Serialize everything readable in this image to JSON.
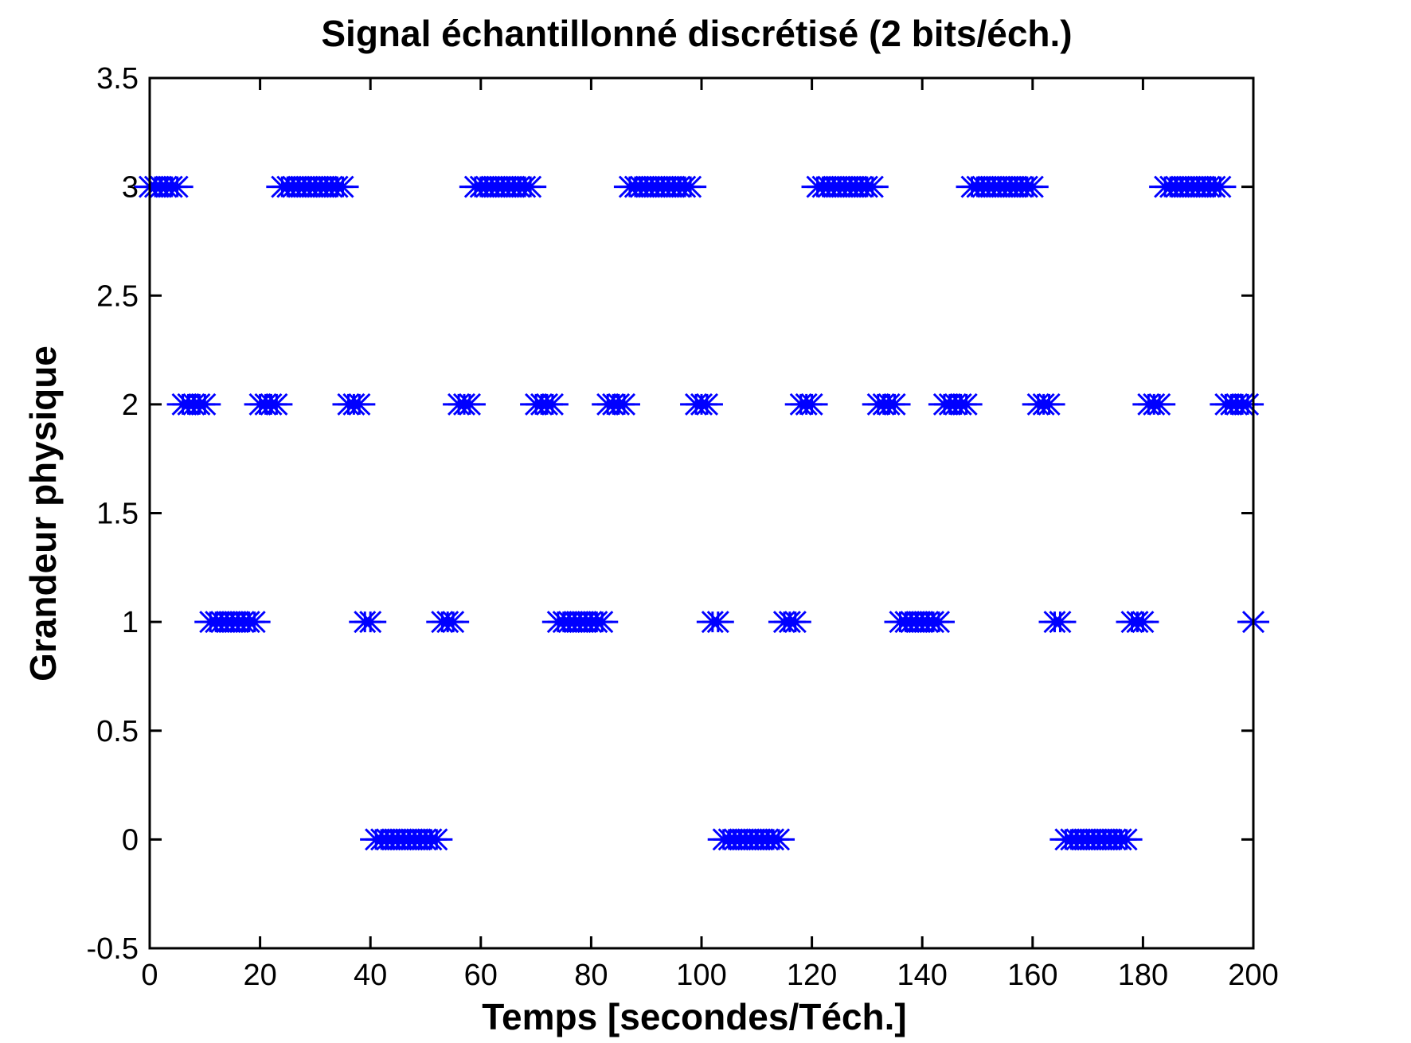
{
  "chart_data": {
    "type": "scatter",
    "title": "Signal échantillonné discrétisé (2 bits/éch.)",
    "xlabel": "Temps [secondes/Téch.]",
    "ylabel": "Grandeur physique",
    "xlim": [
      0,
      200
    ],
    "ylim": [
      -0.5,
      3.5
    ],
    "xticks": [
      "0",
      "20",
      "40",
      "60",
      "80",
      "100",
      "120",
      "140",
      "160",
      "180",
      "200"
    ],
    "yticks": [
      "-0.5",
      "0",
      "0.5",
      "1",
      "1.5",
      "2",
      "2.5",
      "3",
      "3.5"
    ],
    "grid": false,
    "marker": "*",
    "color": "#0000ff",
    "series": [
      {
        "x": [
          0,
          1,
          2,
          3,
          4,
          5,
          6,
          7,
          8,
          9,
          10,
          11,
          12,
          13,
          14,
          15,
          16,
          17,
          18,
          19,
          20,
          21,
          22,
          23,
          24,
          25,
          26,
          27,
          28,
          29,
          30,
          31,
          32,
          33,
          34,
          35,
          36,
          37,
          38,
          39,
          40,
          41,
          42,
          43,
          44,
          45,
          46,
          47,
          48,
          49,
          50,
          51,
          52,
          53,
          54,
          55,
          56,
          57,
          58,
          59,
          60,
          61,
          62,
          63,
          64,
          65,
          66,
          67,
          68,
          69,
          70,
          71,
          72,
          73,
          74,
          75,
          76,
          77,
          78,
          79,
          80,
          81,
          82,
          83,
          84,
          85,
          86,
          87,
          88,
          89,
          90,
          91,
          92,
          93,
          94,
          95,
          96,
          97,
          98,
          99,
          100,
          101,
          102,
          103,
          104,
          105,
          106,
          107,
          108,
          109,
          110,
          111,
          112,
          113,
          114,
          115,
          116,
          117,
          118,
          119,
          120,
          121,
          122,
          123,
          124,
          125,
          126,
          127,
          128,
          129,
          130,
          131,
          132,
          133,
          134,
          135,
          136,
          137,
          138,
          139,
          140,
          141,
          142,
          143,
          144,
          145,
          146,
          147,
          148,
          149,
          150,
          151,
          152,
          153,
          154,
          155,
          156,
          157,
          158,
          159,
          160,
          161,
          162,
          163,
          164,
          165,
          166,
          167,
          168,
          169,
          170,
          171,
          172,
          173,
          174,
          175,
          176,
          177,
          178,
          179,
          180,
          181,
          182,
          183,
          184,
          185,
          186,
          187,
          188,
          189,
          190,
          191,
          192,
          193,
          194,
          195,
          196,
          197,
          198,
          199,
          200
        ],
        "y": [
          3,
          3,
          3,
          3,
          3,
          3,
          2,
          2,
          2,
          2,
          2,
          1,
          1,
          1,
          1,
          1,
          1,
          1,
          1,
          1,
          2,
          2,
          2,
          2,
          3,
          3,
          3,
          3,
          3,
          3,
          3,
          3,
          3,
          3,
          3,
          3,
          2,
          2,
          2,
          1,
          1,
          0,
          0,
          0,
          0,
          0,
          0,
          0,
          0,
          0,
          0,
          0,
          0,
          1,
          1,
          1,
          2,
          2,
          2,
          3,
          3,
          3,
          3,
          3,
          3,
          3,
          3,
          3,
          3,
          3,
          2,
          2,
          2,
          2,
          1,
          1,
          1,
          1,
          1,
          1,
          1,
          1,
          1,
          2,
          2,
          2,
          2,
          3,
          3,
          3,
          3,
          3,
          3,
          3,
          3,
          3,
          3,
          3,
          3,
          2,
          2,
          2,
          1,
          1,
          0,
          0,
          0,
          0,
          0,
          0,
          0,
          0,
          0,
          0,
          0,
          1,
          1,
          1,
          2,
          2,
          2,
          3,
          3,
          3,
          3,
          3,
          3,
          3,
          3,
          3,
          3,
          3,
          2,
          2,
          2,
          2,
          1,
          1,
          1,
          1,
          1,
          1,
          1,
          1,
          2,
          2,
          2,
          2,
          2,
          3,
          3,
          3,
          3,
          3,
          3,
          3,
          3,
          3,
          3,
          3,
          3,
          2,
          2,
          2,
          1,
          1,
          0,
          0,
          0,
          0,
          0,
          0,
          0,
          0,
          0,
          0,
          0,
          0,
          1,
          1,
          1,
          2,
          2,
          2,
          3,
          3,
          3,
          3,
          3,
          3,
          3,
          3,
          3,
          3,
          3,
          2,
          2,
          2,
          2,
          2,
          1
        ]
      }
    ]
  }
}
